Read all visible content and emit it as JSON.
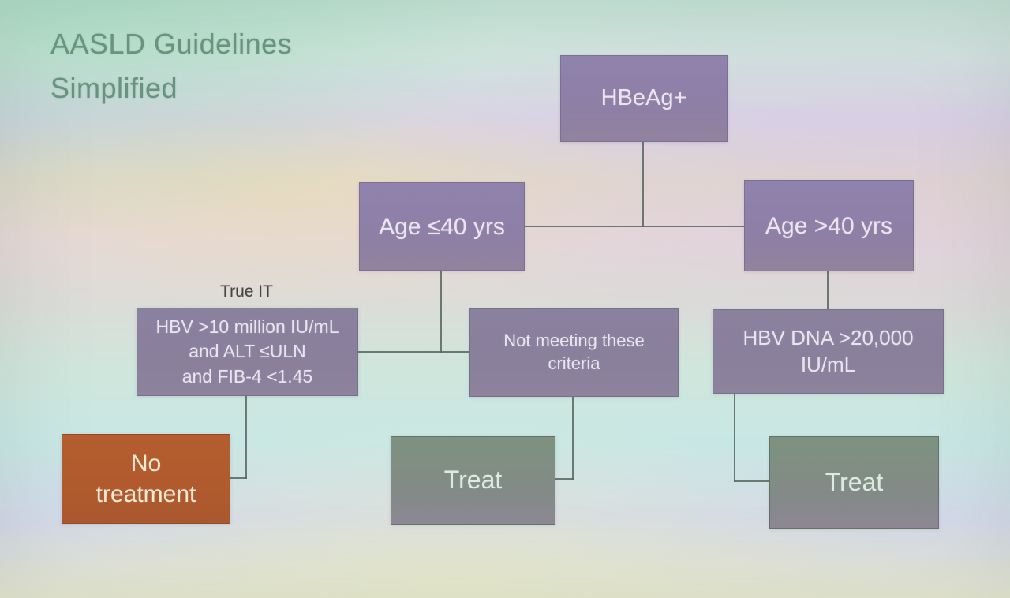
{
  "slide": {
    "title_line1": "AASLD Guidelines",
    "title_line2": "Simplified"
  },
  "flowchart": {
    "root": {
      "label": "HBeAg+"
    },
    "age_young": {
      "label": "Age ≤40 yrs"
    },
    "age_old": {
      "label": "Age >40 yrs"
    },
    "true_it_caption": "True IT",
    "criteria": {
      "line1": "HBV >10 million IU/mL",
      "line2": "and ALT ≤ULN",
      "line3": "and FIB-4 <1.45"
    },
    "not_meeting": {
      "line1": "Not meeting these",
      "line2": "criteria"
    },
    "hbv_dna": {
      "label": "HBV DNA >20,000 IU/mL"
    },
    "no_treatment": {
      "line1": "No",
      "line2": "treatment"
    },
    "treat_left": {
      "label": "Treat"
    },
    "treat_right": {
      "label": "Treat"
    },
    "edges": [
      {
        "from": "root",
        "to": "age_young"
      },
      {
        "from": "root",
        "to": "age_old"
      },
      {
        "from": "age_young",
        "to": "criteria"
      },
      {
        "from": "age_young",
        "to": "not_meeting"
      },
      {
        "from": "age_old",
        "to": "hbv_dna"
      },
      {
        "from": "criteria",
        "to": "no_treatment"
      },
      {
        "from": "not_meeting",
        "to": "treat_left"
      },
      {
        "from": "hbv_dna",
        "to": "treat_right"
      }
    ]
  },
  "colors": {
    "title_text": "#68947f",
    "purple_box": "#8d7fa8",
    "purple_muted_box": "#89809c",
    "green_box": "#7d9181",
    "orange_box": "#b05a2d",
    "connector_line": "#57665f"
  }
}
